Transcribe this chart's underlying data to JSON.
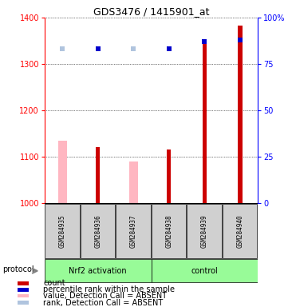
{
  "title": "GDS3476 / 1415901_at",
  "samples": [
    "GSM284935",
    "GSM284936",
    "GSM284937",
    "GSM284938",
    "GSM284939",
    "GSM284940"
  ],
  "groups": [
    "Nrf2 activation",
    "Nrf2 activation",
    "Nrf2 activation",
    "control",
    "control",
    "control"
  ],
  "ylim_left": [
    1000,
    1400
  ],
  "ylim_right": [
    0,
    100
  ],
  "yticks_left": [
    1000,
    1100,
    1200,
    1300,
    1400
  ],
  "yticks_right": [
    0,
    25,
    50,
    75,
    100
  ],
  "count_values": [
    null,
    1120,
    null,
    1115,
    1350,
    1383
  ],
  "count_color": "#CC0000",
  "value_absent": [
    1135,
    null,
    1090,
    null,
    null,
    null
  ],
  "value_absent_color": "#FFB6C1",
  "percentile_rank": [
    null,
    83,
    null,
    83,
    87,
    88
  ],
  "percentile_rank_color": "#0000CC",
  "rank_absent": [
    83,
    null,
    83,
    null,
    null,
    null
  ],
  "rank_absent_color": "#B0C4DE",
  "group_color": "#90EE90",
  "legend_items": [
    {
      "label": "count",
      "color": "#CC0000"
    },
    {
      "label": "percentile rank within the sample",
      "color": "#0000CC"
    },
    {
      "label": "value, Detection Call = ABSENT",
      "color": "#FFB6C1"
    },
    {
      "label": "rank, Detection Call = ABSENT",
      "color": "#B0C4DE"
    }
  ]
}
